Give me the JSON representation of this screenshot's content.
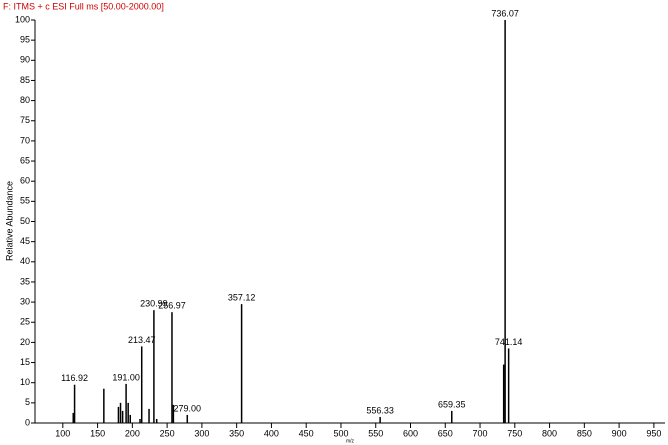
{
  "chart_data": {
    "type": "bar",
    "title": "F: ITMS + c ESI Full ms [50.00-2000.00]",
    "y_label": "Relative Abundance",
    "x_label": "m/z",
    "color": "#000000",
    "x": [
      115.0,
      116.92,
      159.0,
      180.0,
      183.0,
      186.0,
      191.0,
      194.0,
      197.0,
      211.0,
      213.47,
      224.0,
      230.99,
      235.0,
      256.97,
      259.0,
      279.0,
      357.12,
      556.33,
      659.35,
      734.0,
      736.07,
      741.14
    ],
    "values": [
      2.5,
      9.5,
      8.5,
      4,
      5,
      3,
      9.7,
      5,
      2,
      1,
      19,
      3.5,
      28,
      1,
      27.5,
      4.5,
      2,
      29.5,
      1.5,
      3,
      14.5,
      100,
      18.5
    ],
    "peak_labels": [
      null,
      "116.92",
      null,
      null,
      null,
      null,
      "191.00",
      null,
      null,
      null,
      "213.47",
      null,
      "230.99",
      null,
      "256.97",
      null,
      "279.00",
      "357.12",
      "556.33",
      "659.35",
      null,
      "736.07",
      "741.14"
    ],
    "xlim": [
      60,
      966
    ],
    "xticks": [
      100,
      150,
      200,
      250,
      300,
      350,
      400,
      450,
      500,
      550,
      600,
      650,
      700,
      750,
      800,
      850,
      900,
      950
    ],
    "ylim": [
      0,
      100
    ],
    "yticks": [
      0,
      5,
      10,
      15,
      20,
      25,
      30,
      35,
      40,
      45,
      50,
      55,
      60,
      65,
      70,
      75,
      80,
      85,
      90,
      95,
      100
    ]
  }
}
